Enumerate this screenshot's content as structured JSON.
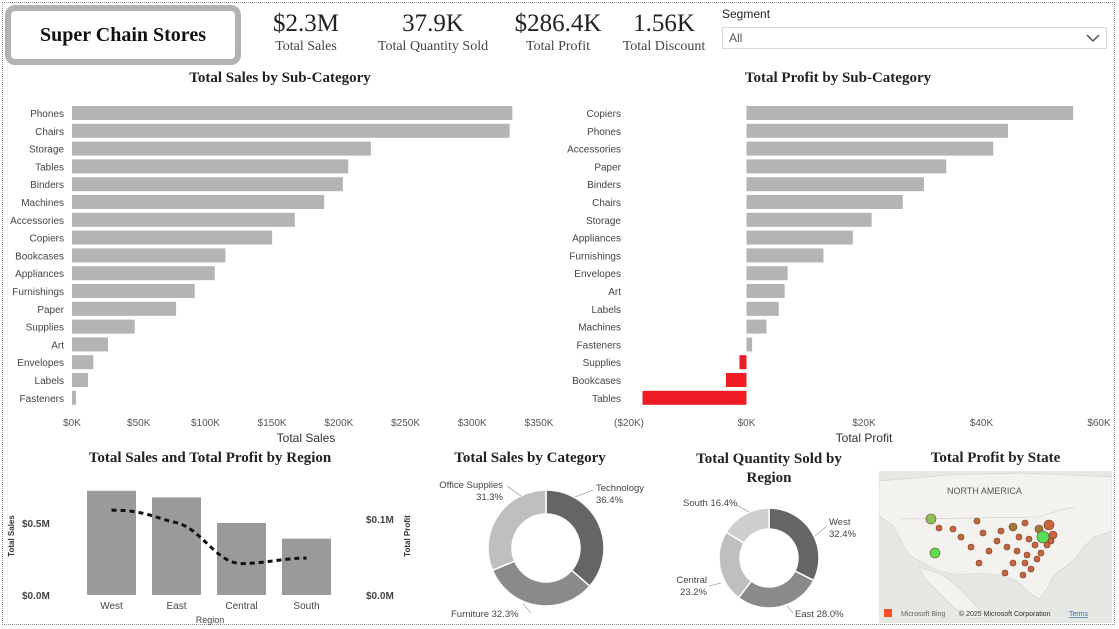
{
  "header": {
    "title": "Super Chain Stores",
    "kpis": [
      {
        "value": "$2.3M",
        "label": "Total Sales"
      },
      {
        "value": "37.9K",
        "label": "Total Quantity Sold"
      },
      {
        "value": "$286.4K",
        "label": "Total Profit"
      },
      {
        "value": "1.56K",
        "label": "Total Discount"
      }
    ],
    "segment": {
      "label": "Segment",
      "value": "All"
    }
  },
  "colors": {
    "bar": "#b4b4b4",
    "negative": "#ee1c25",
    "region_bar": "#9a9a9a",
    "donut_dark": "#656565",
    "donut_mid": "#8a8a8a",
    "donut_light": "#bfbfbf"
  },
  "chart_data": [
    {
      "id": "sales_by_subcat",
      "type": "bar",
      "orientation": "horizontal",
      "title": "Total Sales by Sub-Category",
      "xlabel": "Total Sales",
      "ylabel": "",
      "xlim": [
        0,
        350000
      ],
      "ticks": [
        "$0K",
        "$50K",
        "$100K",
        "$150K",
        "$200K",
        "$250K",
        "$300K",
        "$350K"
      ],
      "categories": [
        "Phones",
        "Chairs",
        "Storage",
        "Tables",
        "Binders",
        "Machines",
        "Accessories",
        "Copiers",
        "Bookcases",
        "Appliances",
        "Furnishings",
        "Paper",
        "Supplies",
        "Art",
        "Envelopes",
        "Labels",
        "Fasteners"
      ],
      "values": [
        330000,
        328000,
        224000,
        207000,
        203000,
        189000,
        167000,
        150000,
        115000,
        107000,
        92000,
        78000,
        47000,
        27000,
        16000,
        12000,
        3000
      ]
    },
    {
      "id": "profit_by_subcat",
      "type": "bar",
      "orientation": "horizontal",
      "title": "Total Profit by Sub-Category",
      "xlabel": "Total Profit",
      "ylabel": "",
      "xlim": [
        -20000,
        60000
      ],
      "ticks": [
        "($20K)",
        "$0K",
        "$20K",
        "$40K",
        "$60K"
      ],
      "categories": [
        "Copiers",
        "Phones",
        "Accessories",
        "Paper",
        "Binders",
        "Chairs",
        "Storage",
        "Appliances",
        "Furnishings",
        "Envelopes",
        "Art",
        "Labels",
        "Machines",
        "Fasteners",
        "Supplies",
        "Bookcases",
        "Tables"
      ],
      "values": [
        55600,
        44500,
        42000,
        34000,
        30200,
        26600,
        21300,
        18100,
        13100,
        7000,
        6500,
        5500,
        3400,
        950,
        -1200,
        -3500,
        -17700
      ]
    },
    {
      "id": "sales_profit_by_region",
      "type": "bar",
      "title": "Total Sales and Total Profit by Region",
      "xlabel": "Region",
      "ylabel": "Total Sales",
      "ylabel2": "Total Profit",
      "categories": [
        "West",
        "East",
        "Central",
        "South"
      ],
      "y_ticks": [
        "$0.0M",
        "$0.5M"
      ],
      "y2_ticks": [
        "$0.0M",
        "$0.1M"
      ],
      "series": [
        {
          "name": "Total Sales",
          "kind": "bar",
          "values": [
            725000,
            679000,
            501000,
            392000
          ]
        },
        {
          "name": "Total Profit",
          "kind": "line",
          "values": [
            108000,
            92000,
            40000,
            47000
          ]
        }
      ]
    },
    {
      "id": "sales_by_category",
      "type": "pie",
      "donut": true,
      "title": "Total Sales by Category",
      "labels": [
        "Technology",
        "Furniture",
        "Office Supplies"
      ],
      "values": [
        36.4,
        32.3,
        31.3
      ],
      "value_labels": [
        "36.4%",
        "32.3%",
        "31.3%"
      ]
    },
    {
      "id": "qty_by_region",
      "type": "pie",
      "donut": true,
      "title": "Total Quantity Sold by Region",
      "labels": [
        "West",
        "East",
        "Central",
        "South"
      ],
      "values": [
        32.4,
        28.0,
        23.2,
        16.4
      ],
      "value_labels": [
        "32.4%",
        "28.0%",
        "23.2%",
        "16.4%"
      ]
    }
  ],
  "map": {
    "title": "Total Profit by State",
    "region_label": "NORTH AMERICA",
    "attribution": "Microsoft Bing",
    "copyright": "© 2025 Microsoft Corporation",
    "terms": "Terms"
  }
}
